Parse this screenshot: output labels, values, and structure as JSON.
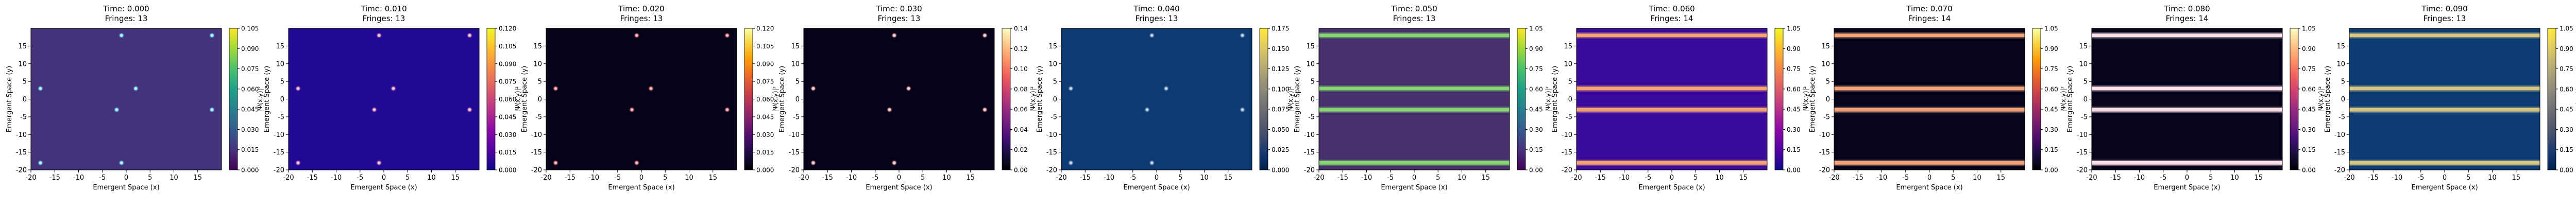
{
  "axis_labels": {
    "x": "Emergent Space (x)",
    "y": "Emergent Space (y)",
    "colorbar": "|Ψ(x,y)|²"
  },
  "chart_data": [
    {
      "type": "heatmap",
      "title": "Time: 0.000",
      "subtitle": "Fringes: 13",
      "colormap": "viridis",
      "background": "#44327a",
      "spot_color": "#7ff0ff",
      "xlim": [
        -20,
        20
      ],
      "ylim": [
        -20,
        20
      ],
      "xticks": [
        -20,
        -15,
        -10,
        -5,
        0,
        5,
        10,
        15
      ],
      "yticks": [
        -20,
        -15,
        -10,
        -5,
        0,
        5,
        10,
        15
      ],
      "cbar_ticks": [
        0.0,
        0.015,
        0.03,
        0.045,
        0.06,
        0.075,
        0.09,
        0.105
      ],
      "cbar_fmt": 3,
      "vmax": 0.105,
      "cbar_colors": [
        "#440154",
        "#46337e",
        "#365c8d",
        "#277f8e",
        "#1fa187",
        "#4ac16d",
        "#a0da39",
        "#fde725"
      ],
      "spots": [
        [
          -18,
          -18
        ],
        [
          -18,
          3
        ],
        [
          -1,
          18
        ],
        [
          -1,
          -18
        ],
        [
          2,
          3
        ],
        [
          18,
          18
        ],
        [
          18,
          -3
        ],
        [
          -2,
          -3
        ]
      ],
      "stripes": []
    },
    {
      "type": "heatmap",
      "title": "Time: 0.010",
      "subtitle": "Fringes: 13",
      "colormap": "plasma",
      "background": "#1f0a96",
      "spot_color": "#ff9bb7",
      "xlim": [
        -20,
        20
      ],
      "ylim": [
        -20,
        20
      ],
      "xticks": [
        -20,
        -15,
        -10,
        -5,
        0,
        5,
        10,
        15
      ],
      "yticks": [
        -20,
        -15,
        -10,
        -5,
        0,
        5,
        10,
        15
      ],
      "cbar_ticks": [
        0.0,
        0.015,
        0.03,
        0.045,
        0.06,
        0.075,
        0.09,
        0.105,
        0.12
      ],
      "cbar_fmt": 3,
      "vmax": 0.12,
      "cbar_colors": [
        "#0d0887",
        "#5402a3",
        "#8b0aa5",
        "#b93289",
        "#db5c68",
        "#f48849",
        "#febd2a",
        "#f0f921"
      ],
      "spots": [
        [
          -18,
          -18
        ],
        [
          -18,
          3
        ],
        [
          -1,
          18
        ],
        [
          -1,
          -18
        ],
        [
          2,
          3
        ],
        [
          18,
          18
        ],
        [
          18,
          -3
        ],
        [
          -2,
          -3
        ]
      ],
      "stripes": []
    },
    {
      "type": "heatmap",
      "title": "Time: 0.020",
      "subtitle": "Fringes: 13",
      "colormap": "inferno",
      "background": "#05031a",
      "spot_color": "#ff8a8a",
      "xlim": [
        -20,
        20
      ],
      "ylim": [
        -20,
        20
      ],
      "xticks": [
        -20,
        -15,
        -10,
        -5,
        0,
        5,
        10,
        15
      ],
      "yticks": [
        -20,
        -15,
        -10,
        -5,
        0,
        5,
        10,
        15
      ],
      "cbar_ticks": [
        0.0,
        0.015,
        0.03,
        0.045,
        0.06,
        0.075,
        0.09,
        0.105,
        0.12
      ],
      "cbar_fmt": 3,
      "vmax": 0.12,
      "cbar_colors": [
        "#000004",
        "#1b0c41",
        "#4a0c6b",
        "#781c6d",
        "#a52c60",
        "#cf4446",
        "#ed6925",
        "#fb9b06",
        "#f7d13d",
        "#fcffa4"
      ],
      "spots": [
        [
          -18,
          -18
        ],
        [
          -18,
          3
        ],
        [
          -1,
          18
        ],
        [
          -1,
          -18
        ],
        [
          2,
          3
        ],
        [
          18,
          18
        ],
        [
          18,
          -3
        ],
        [
          -2,
          -3
        ]
      ],
      "stripes": []
    },
    {
      "type": "heatmap",
      "title": "Time: 0.030",
      "subtitle": "Fringes: 13",
      "colormap": "magma",
      "background": "#05031a",
      "spot_color": "#ffb0b0",
      "xlim": [
        -20,
        20
      ],
      "ylim": [
        -20,
        20
      ],
      "xticks": [
        -20,
        -15,
        -10,
        -5,
        0,
        5,
        10,
        15
      ],
      "yticks": [
        -20,
        -15,
        -10,
        -5,
        0,
        5,
        10,
        15
      ],
      "cbar_ticks": [
        0.0,
        0.02,
        0.04,
        0.06,
        0.08,
        0.1,
        0.12,
        0.14
      ],
      "cbar_fmt": 2,
      "vmax": 0.14,
      "cbar_colors": [
        "#000004",
        "#180f3d",
        "#440f76",
        "#721f81",
        "#9e2f7f",
        "#cd4071",
        "#f1605d",
        "#fd9668",
        "#feca8d",
        "#fcfdbf"
      ],
      "spots": [
        [
          -18,
          -18
        ],
        [
          -18,
          3
        ],
        [
          -1,
          18
        ],
        [
          -1,
          -18
        ],
        [
          2,
          3
        ],
        [
          18,
          18
        ],
        [
          18,
          -3
        ],
        [
          -2,
          -3
        ]
      ],
      "stripes": []
    },
    {
      "type": "heatmap",
      "title": "Time: 0.040",
      "subtitle": "Fringes: 13",
      "colormap": "cividis",
      "background": "#0b3b72",
      "spot_color": "#9fb8d6",
      "xlim": [
        -20,
        20
      ],
      "ylim": [
        -20,
        20
      ],
      "xticks": [
        -20,
        -15,
        -10,
        -5,
        0,
        5,
        10,
        15
      ],
      "yticks": [
        -20,
        -15,
        -10,
        -5,
        0,
        5,
        10,
        15
      ],
      "cbar_ticks": [
        0.0,
        0.025,
        0.05,
        0.075,
        0.1,
        0.125,
        0.15,
        0.175
      ],
      "cbar_fmt": 3,
      "vmax": 0.175,
      "cbar_colors": [
        "#00224e",
        "#123570",
        "#3b496c",
        "#575d6d",
        "#707173",
        "#8a8779",
        "#a69d75",
        "#c4b56c",
        "#e4cf5b",
        "#fee838"
      ],
      "spots": [
        [
          -18,
          -18
        ],
        [
          -18,
          3
        ],
        [
          -1,
          18
        ],
        [
          -1,
          -18
        ],
        [
          2,
          3
        ],
        [
          18,
          18
        ],
        [
          18,
          -3
        ],
        [
          -2,
          -3
        ]
      ],
      "stripes": []
    },
    {
      "type": "heatmap",
      "title": "Time: 0.050",
      "subtitle": "Fringes: 13",
      "colormap": "viridis",
      "background": "#47306e",
      "spot_color": "#7fd67a",
      "xlim": [
        -20,
        20
      ],
      "ylim": [
        -20,
        20
      ],
      "xticks": [
        -20,
        -15,
        -10,
        -5,
        0,
        5,
        10,
        15
      ],
      "yticks": [
        -20,
        -15,
        -10,
        -5,
        0,
        5,
        10,
        15
      ],
      "cbar_ticks": [
        0.0,
        0.15,
        0.3,
        0.45,
        0.6,
        0.75,
        0.9,
        1.05
      ],
      "cbar_fmt": 2,
      "vmax": 1.05,
      "cbar_colors": [
        "#440154",
        "#46337e",
        "#365c8d",
        "#277f8e",
        "#1fa187",
        "#4ac16d",
        "#a0da39",
        "#fde725"
      ],
      "spots": [],
      "stripes": [
        {
          "y": -18,
          "color": "#84d86e"
        },
        {
          "y": -3,
          "color": "#84d86e"
        },
        {
          "y": 3,
          "color": "#84d86e"
        },
        {
          "y": 18,
          "color": "#84d86e"
        }
      ]
    },
    {
      "type": "heatmap",
      "title": "Time: 0.060",
      "subtitle": "Fringes: 14",
      "colormap": "plasma",
      "background": "#3a0a9a",
      "spot_color": "#ffc0a0",
      "xlim": [
        -20,
        20
      ],
      "ylim": [
        -20,
        20
      ],
      "xticks": [
        -20,
        -15,
        -10,
        -5,
        0,
        5,
        10,
        15
      ],
      "yticks": [
        -20,
        -15,
        -10,
        -5,
        0,
        5,
        10,
        15
      ],
      "cbar_ticks": [
        0.0,
        0.15,
        0.3,
        0.45,
        0.6,
        0.75,
        0.9,
        1.05
      ],
      "cbar_fmt": 2,
      "vmax": 1.05,
      "cbar_colors": [
        "#0d0887",
        "#5402a3",
        "#8b0aa5",
        "#b93289",
        "#db5c68",
        "#f48849",
        "#febd2a",
        "#f0f921"
      ],
      "spots": [],
      "stripes": [
        {
          "y": -18,
          "color": "#f6a36f"
        },
        {
          "y": -3,
          "color": "#f6a36f"
        },
        {
          "y": 3,
          "color": "#f6a36f"
        },
        {
          "y": 18,
          "color": "#f6a36f"
        }
      ]
    },
    {
      "type": "heatmap",
      "title": "Time: 0.070",
      "subtitle": "Fringes: 14",
      "colormap": "inferno",
      "background": "#07051d",
      "spot_color": "#ffc080",
      "xlim": [
        -20,
        20
      ],
      "ylim": [
        -20,
        20
      ],
      "xticks": [
        -20,
        -15,
        -10,
        -5,
        0,
        5,
        10,
        15
      ],
      "yticks": [
        -20,
        -15,
        -10,
        -5,
        0,
        5,
        10,
        15
      ],
      "cbar_ticks": [
        0.0,
        0.15,
        0.3,
        0.45,
        0.6,
        0.75,
        0.9,
        1.05
      ],
      "cbar_fmt": 2,
      "vmax": 1.05,
      "cbar_colors": [
        "#000004",
        "#1b0c41",
        "#4a0c6b",
        "#781c6d",
        "#a52c60",
        "#cf4446",
        "#ed6925",
        "#fb9b06",
        "#f7d13d",
        "#fcffa4"
      ],
      "spots": [],
      "stripes": [
        {
          "y": -18,
          "color": "#f4a276"
        },
        {
          "y": -3,
          "color": "#f4a276"
        },
        {
          "y": 3,
          "color": "#f4a276"
        },
        {
          "y": 18,
          "color": "#f4a276"
        }
      ]
    },
    {
      "type": "heatmap",
      "title": "Time: 0.080",
      "subtitle": "Fringes: 14",
      "colormap": "magma",
      "background": "#07051d",
      "spot_color": "#ffd0d0",
      "xlim": [
        -20,
        20
      ],
      "ylim": [
        -20,
        20
      ],
      "xticks": [
        -20,
        -15,
        -10,
        -5,
        0,
        5,
        10,
        15
      ],
      "yticks": [
        -20,
        -15,
        -10,
        -5,
        0,
        5,
        10,
        15
      ],
      "cbar_ticks": [
        0.0,
        0.15,
        0.3,
        0.45,
        0.6,
        0.75,
        0.9,
        1.05
      ],
      "cbar_fmt": 2,
      "vmax": 1.05,
      "cbar_colors": [
        "#000004",
        "#180f3d",
        "#440f76",
        "#721f81",
        "#9e2f7f",
        "#cd4071",
        "#f1605d",
        "#fd9668",
        "#feca8d",
        "#fcfdbf"
      ],
      "spots": [],
      "stripes": [
        {
          "y": -18,
          "color": "#fde0e6"
        },
        {
          "y": -3,
          "color": "#fde0e6"
        },
        {
          "y": 3,
          "color": "#fde0e6"
        },
        {
          "y": 18,
          "color": "#fde0e6"
        }
      ]
    },
    {
      "type": "heatmap",
      "title": "Time: 0.090",
      "subtitle": "Fringes: 13",
      "colormap": "cividis",
      "background": "#0d3c74",
      "spot_color": "#e8d27a",
      "xlim": [
        -20,
        20
      ],
      "ylim": [
        -20,
        20
      ],
      "xticks": [
        -20,
        -15,
        -10,
        -5,
        0,
        5,
        10,
        15
      ],
      "yticks": [
        -20,
        -15,
        -10,
        -5,
        0,
        5,
        10,
        15
      ],
      "cbar_ticks": [
        0.0,
        0.15,
        0.3,
        0.45,
        0.6,
        0.75,
        0.9,
        1.05
      ],
      "cbar_fmt": 2,
      "vmax": 1.05,
      "cbar_colors": [
        "#00224e",
        "#123570",
        "#3b496c",
        "#575d6d",
        "#707173",
        "#8a8779",
        "#a69d75",
        "#c4b56c",
        "#e4cf5b",
        "#fee838"
      ],
      "spots": [],
      "stripes": [
        {
          "y": -18,
          "color": "#d9c680"
        },
        {
          "y": -3,
          "color": "#d9c680"
        },
        {
          "y": 3,
          "color": "#d9c680"
        },
        {
          "y": 18,
          "color": "#d9c680"
        }
      ]
    }
  ]
}
